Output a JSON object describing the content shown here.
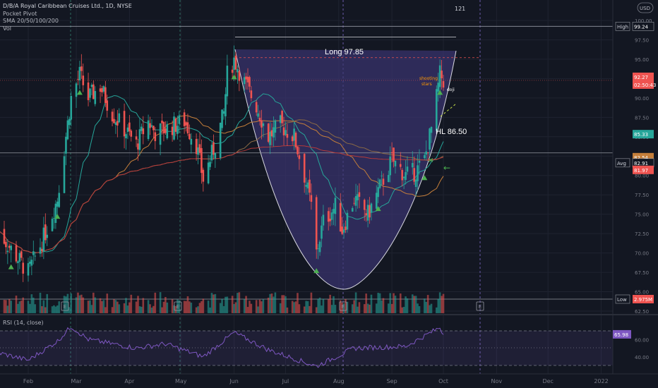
{
  "legend": {
    "title": "D/B/A Royal Caribbean Cruises Ltd., 1D, NYSE",
    "line2": "Pocket Pivot",
    "line3": "SMA 20/50/100/200",
    "line4": "Vol"
  },
  "top_number": "121",
  "currency": "USD",
  "colors": {
    "background": "#131722",
    "up": "#26a69a",
    "down": "#ef5350",
    "grid": "#1f2330",
    "cup_fill": "#3b3470",
    "sma20": "#26a69a",
    "sma50": "#c47e3a",
    "sma100": "#8b6a45",
    "sma200": "#b53a3a",
    "rsi": "#7e57c2",
    "marker": "#4caf50",
    "annotation": "#ff9800"
  },
  "price_labels": [
    {
      "label": "High",
      "value": "99.24"
    },
    {
      "label": "",
      "value": "92.27"
    },
    {
      "label": "",
      "value": "02:50:43"
    },
    {
      "label": "",
      "value": "85.33"
    },
    {
      "label": "",
      "value": "82.54"
    },
    {
      "label": "Avg",
      "value": "82.91"
    },
    {
      "label": "",
      "value": "81.97"
    },
    {
      "label": "Low",
      "value": "2.975M"
    }
  ],
  "rsi": {
    "label": "RSI (14, close)",
    "value": "65.98",
    "ticks": [
      "60.00",
      "40.00"
    ]
  },
  "annotations": {
    "long": "Long 97.85",
    "hl": "HL 86.50",
    "shooting": "shooting",
    "stars": "stars",
    "doji": "doji"
  },
  "earnings_marker": "E",
  "chart_data": {
    "type": "candlestick",
    "y_axis_ticks": [
      "100.00",
      "97.50",
      "95.00",
      "92.50",
      "90.00",
      "87.50",
      "85.00",
      "82.50",
      "80.00",
      "77.50",
      "75.00",
      "72.50",
      "70.00",
      "67.50",
      "65.00",
      "62.50"
    ],
    "ylim": [
      62.5,
      101
    ],
    "x_axis_ticks": [
      "Feb",
      "Mar",
      "Apr",
      "May",
      "Jun",
      "Jul",
      "Aug",
      "Sep",
      "Oct",
      "Nov",
      "Dec",
      "2022"
    ],
    "close_anchor_points": [
      {
        "x": "Jan 14",
        "y": 73
      },
      {
        "x": "Jan 22",
        "y": 70.5
      },
      {
        "x": "Feb 1",
        "y": 67.5
      },
      {
        "x": "Feb 10",
        "y": 72
      },
      {
        "x": "Feb 18",
        "y": 77
      },
      {
        "x": "Feb 26",
        "y": 90
      },
      {
        "x": "Mar 3",
        "y": 93
      },
      {
        "x": "Mar 8",
        "y": 90
      },
      {
        "x": "Mar 15",
        "y": 91.5
      },
      {
        "x": "Mar 22",
        "y": 88
      },
      {
        "x": "Mar 29",
        "y": 86
      },
      {
        "x": "Apr 5",
        "y": 84
      },
      {
        "x": "Apr 12",
        "y": 87
      },
      {
        "x": "Apr 16",
        "y": 85.5
      },
      {
        "x": "Apr 22",
        "y": 86
      },
      {
        "x": "May 3",
        "y": 87
      },
      {
        "x": "May 10",
        "y": 84
      },
      {
        "x": "May 14",
        "y": 79.5
      },
      {
        "x": "May 21",
        "y": 84
      },
      {
        "x": "May 26",
        "y": 88
      },
      {
        "x": "May 28",
        "y": 93
      },
      {
        "x": "Jun 1",
        "y": 95
      },
      {
        "x": "Jun 7",
        "y": 92
      },
      {
        "x": "Jun 14",
        "y": 89
      },
      {
        "x": "Jun 21",
        "y": 85
      },
      {
        "x": "Jun 28",
        "y": 86.5
      },
      {
        "x": "Jul 6",
        "y": 85
      },
      {
        "x": "Jul 12",
        "y": 80
      },
      {
        "x": "Jul 16",
        "y": 76
      },
      {
        "x": "Jul 19",
        "y": 70
      },
      {
        "x": "Jul 23",
        "y": 74
      },
      {
        "x": "Jul 30",
        "y": 76
      },
      {
        "x": "Aug 3",
        "y": 73
      },
      {
        "x": "Aug 10",
        "y": 77
      },
      {
        "x": "Aug 18",
        "y": 75
      },
      {
        "x": "Aug 24",
        "y": 78
      },
      {
        "x": "Sep 1",
        "y": 82
      },
      {
        "x": "Sep 9",
        "y": 80
      },
      {
        "x": "Sep 15",
        "y": 80.5
      },
      {
        "x": "Sep 20",
        "y": 82
      },
      {
        "x": "Sep 24",
        "y": 86
      },
      {
        "x": "Sep 27",
        "y": 90
      },
      {
        "x": "Sep 29",
        "y": 93
      },
      {
        "x": "Oct 1",
        "y": 92.27
      }
    ],
    "rsi_anchor_points": [
      {
        "x": "Jan 14",
        "y": 45
      },
      {
        "x": "Feb 1",
        "y": 36
      },
      {
        "x": "Feb 18",
        "y": 58
      },
      {
        "x": "Feb 26",
        "y": 75
      },
      {
        "x": "Mar 8",
        "y": 60
      },
      {
        "x": "Apr 5",
        "y": 50
      },
      {
        "x": "Apr 22",
        "y": 55
      },
      {
        "x": "May 14",
        "y": 40
      },
      {
        "x": "Jun 1",
        "y": 68
      },
      {
        "x": "Jun 21",
        "y": 48
      },
      {
        "x": "Jul 19",
        "y": 29
      },
      {
        "x": "Aug 10",
        "y": 50
      },
      {
        "x": "Sep 9",
        "y": 52
      },
      {
        "x": "Sep 29",
        "y": 74
      },
      {
        "x": "Oct 1",
        "y": 65.98
      }
    ],
    "levels": {
      "high": 99.24,
      "long": 97.85,
      "stop_line": 95.2,
      "hl": 86.5,
      "avg": 82.91
    }
  }
}
